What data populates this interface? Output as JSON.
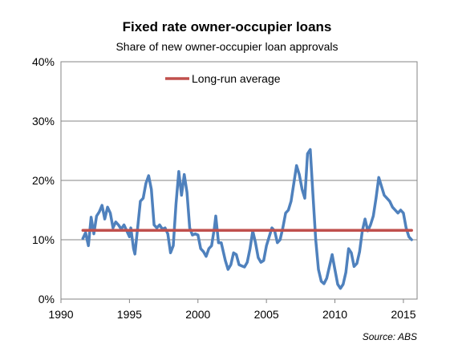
{
  "chart_data": {
    "type": "line",
    "title": "Fixed rate owner-occupier loans",
    "subtitle": "Share of new owner-occupier loan approvals",
    "source": "Source: ABS",
    "xlim": [
      1990,
      2016
    ],
    "ylim": [
      0,
      40
    ],
    "x_ticks": [
      1990,
      1995,
      2000,
      2005,
      2010,
      2015
    ],
    "y_ticks": [
      0,
      10,
      20,
      30,
      40
    ],
    "y_tick_labels": [
      "0%",
      "10%",
      "20%",
      "30%",
      "40%"
    ],
    "grid": "horizontal",
    "legend_position": "top-center",
    "series": [
      {
        "name": "",
        "color": "#4f81bd",
        "points": [
          [
            1991.6,
            10.2
          ],
          [
            1991.8,
            11.2
          ],
          [
            1992.0,
            9.0
          ],
          [
            1992.2,
            13.8
          ],
          [
            1992.4,
            11.0
          ],
          [
            1992.6,
            14.0
          ],
          [
            1992.8,
            14.7
          ],
          [
            1993.0,
            15.8
          ],
          [
            1993.2,
            13.5
          ],
          [
            1993.4,
            15.5
          ],
          [
            1993.6,
            14.5
          ],
          [
            1993.8,
            12.0
          ],
          [
            1994.0,
            13.0
          ],
          [
            1994.2,
            12.5
          ],
          [
            1994.4,
            11.8
          ],
          [
            1994.6,
            12.5
          ],
          [
            1994.8,
            11.5
          ],
          [
            1995.0,
            10.5
          ],
          [
            1995.1,
            12.0
          ],
          [
            1995.3,
            8.5
          ],
          [
            1995.4,
            7.6
          ],
          [
            1995.6,
            12.0
          ],
          [
            1995.8,
            16.5
          ],
          [
            1996.0,
            17.0
          ],
          [
            1996.2,
            19.5
          ],
          [
            1996.4,
            20.8
          ],
          [
            1996.6,
            18.5
          ],
          [
            1996.8,
            12.5
          ],
          [
            1997.0,
            12.0
          ],
          [
            1997.2,
            12.5
          ],
          [
            1997.4,
            11.8
          ],
          [
            1997.6,
            12.0
          ],
          [
            1997.8,
            11.0
          ],
          [
            1998.0,
            7.8
          ],
          [
            1998.2,
            9.0
          ],
          [
            1998.4,
            16.0
          ],
          [
            1998.6,
            21.5
          ],
          [
            1998.8,
            17.5
          ],
          [
            1999.0,
            21.0
          ],
          [
            1999.2,
            18.0
          ],
          [
            1999.4,
            12.0
          ],
          [
            1999.6,
            10.8
          ],
          [
            1999.8,
            11.0
          ],
          [
            2000.0,
            10.8
          ],
          [
            2000.2,
            8.5
          ],
          [
            2000.4,
            8.0
          ],
          [
            2000.6,
            7.2
          ],
          [
            2000.8,
            8.5
          ],
          [
            2001.0,
            9.0
          ],
          [
            2001.2,
            12.0
          ],
          [
            2001.3,
            14.0
          ],
          [
            2001.5,
            9.5
          ],
          [
            2001.7,
            9.5
          ],
          [
            2002.0,
            6.5
          ],
          [
            2002.2,
            5.0
          ],
          [
            2002.4,
            5.8
          ],
          [
            2002.6,
            7.8
          ],
          [
            2002.8,
            7.5
          ],
          [
            2003.0,
            5.8
          ],
          [
            2003.2,
            5.6
          ],
          [
            2003.4,
            5.4
          ],
          [
            2003.6,
            6.2
          ],
          [
            2003.8,
            8.5
          ],
          [
            2004.0,
            11.5
          ],
          [
            2004.2,
            9.5
          ],
          [
            2004.4,
            7.0
          ],
          [
            2004.6,
            6.2
          ],
          [
            2004.8,
            6.5
          ],
          [
            2005.0,
            9.0
          ],
          [
            2005.2,
            10.5
          ],
          [
            2005.4,
            12.0
          ],
          [
            2005.6,
            11.5
          ],
          [
            2005.8,
            9.5
          ],
          [
            2006.0,
            10.0
          ],
          [
            2006.2,
            12.0
          ],
          [
            2006.4,
            14.5
          ],
          [
            2006.6,
            15.0
          ],
          [
            2006.8,
            16.5
          ],
          [
            2007.0,
            19.5
          ],
          [
            2007.2,
            22.5
          ],
          [
            2007.4,
            21.0
          ],
          [
            2007.6,
            18.5
          ],
          [
            2007.8,
            17.0
          ],
          [
            2008.0,
            24.5
          ],
          [
            2008.2,
            25.2
          ],
          [
            2008.4,
            17.5
          ],
          [
            2008.6,
            10.0
          ],
          [
            2008.8,
            5.0
          ],
          [
            2009.0,
            3.0
          ],
          [
            2009.2,
            2.6
          ],
          [
            2009.4,
            3.5
          ],
          [
            2009.6,
            5.5
          ],
          [
            2009.8,
            7.5
          ],
          [
            2010.0,
            5.0
          ],
          [
            2010.2,
            2.5
          ],
          [
            2010.4,
            1.8
          ],
          [
            2010.6,
            2.5
          ],
          [
            2010.8,
            4.5
          ],
          [
            2011.0,
            8.5
          ],
          [
            2011.2,
            7.8
          ],
          [
            2011.4,
            5.5
          ],
          [
            2011.6,
            6.0
          ],
          [
            2011.8,
            8.0
          ],
          [
            2012.0,
            11.5
          ],
          [
            2012.2,
            13.5
          ],
          [
            2012.4,
            11.5
          ],
          [
            2012.6,
            12.5
          ],
          [
            2012.8,
            14.0
          ],
          [
            2013.0,
            17.0
          ],
          [
            2013.2,
            20.5
          ],
          [
            2013.4,
            19.0
          ],
          [
            2013.6,
            17.5
          ],
          [
            2013.8,
            17.0
          ],
          [
            2014.0,
            16.5
          ],
          [
            2014.2,
            15.5
          ],
          [
            2014.4,
            15.0
          ],
          [
            2014.6,
            14.5
          ],
          [
            2014.8,
            15.0
          ],
          [
            2015.0,
            14.5
          ],
          [
            2015.2,
            12.0
          ],
          [
            2015.4,
            10.5
          ],
          [
            2015.6,
            10.0
          ]
        ]
      },
      {
        "name": "Long-run average",
        "color": "#c0504d",
        "points": [
          [
            1991.6,
            11.6
          ],
          [
            2015.6,
            11.6
          ]
        ]
      }
    ]
  }
}
